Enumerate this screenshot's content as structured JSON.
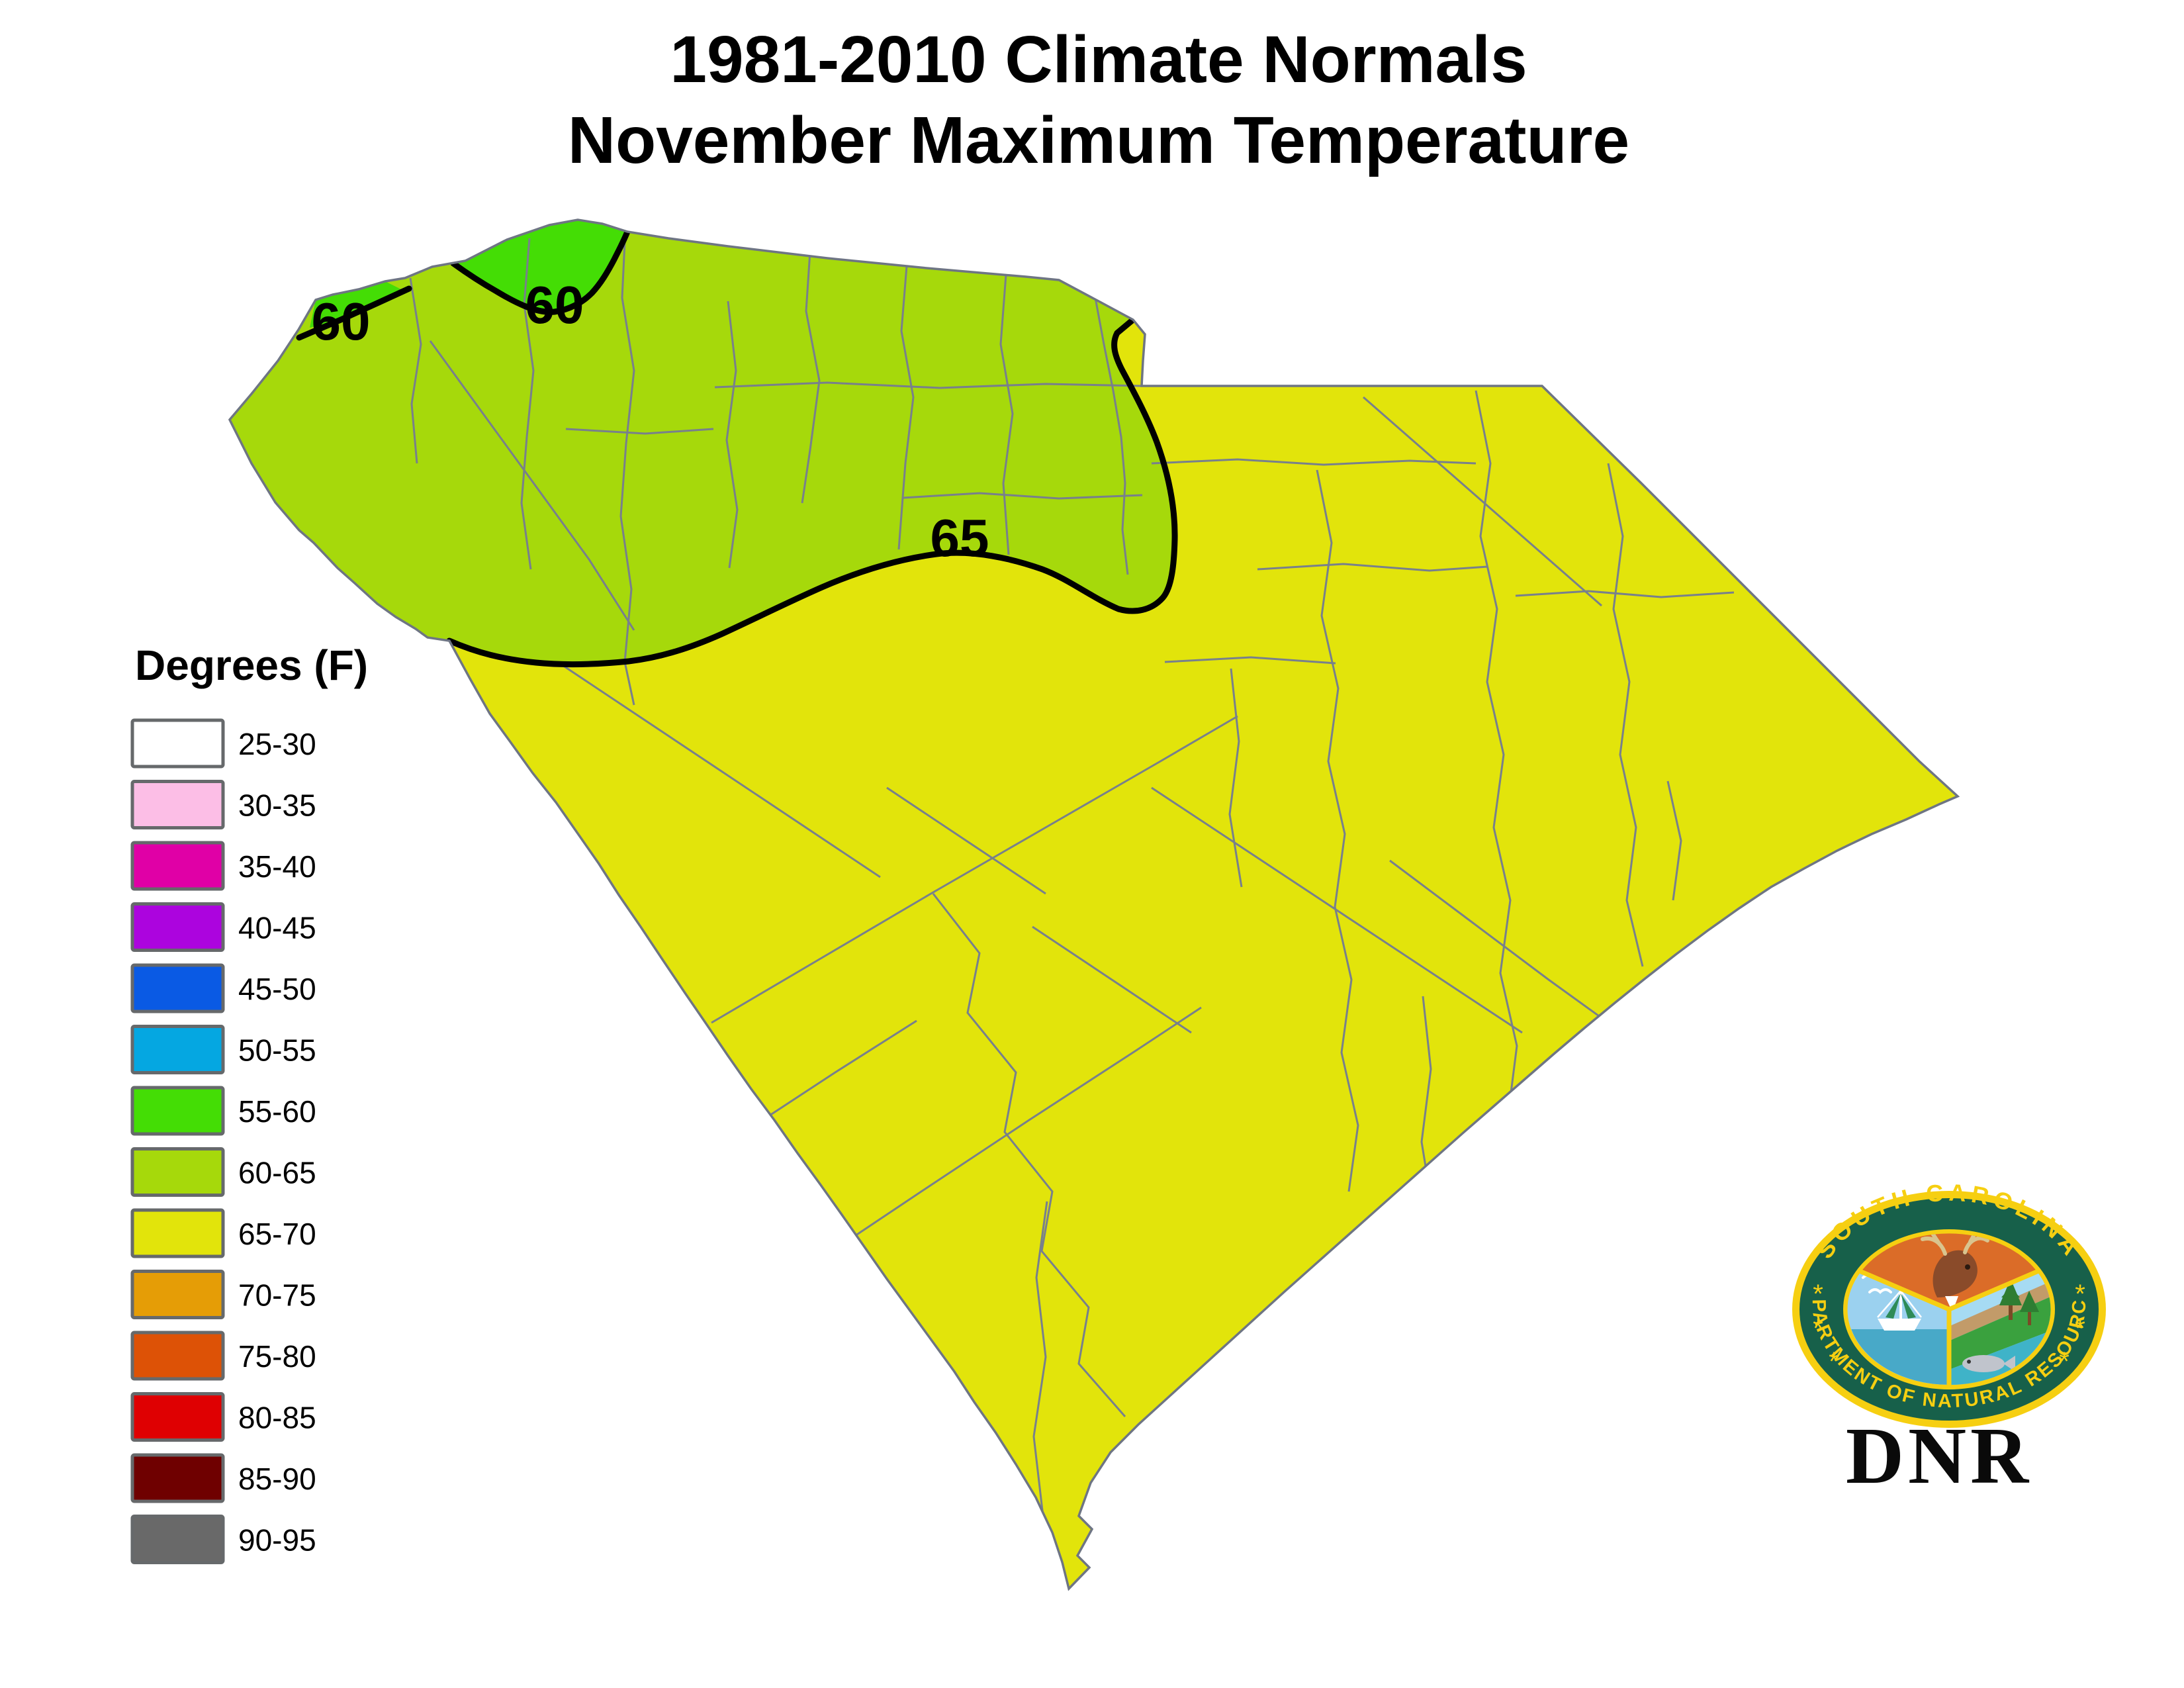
{
  "title": {
    "line1": "1981-2010 Climate Normals",
    "line2": "November Maximum Temperature"
  },
  "legend": {
    "heading": "Degrees (F)",
    "items": [
      {
        "label": "25-30",
        "color": "#FFFFFF"
      },
      {
        "label": "30-35",
        "color": "#FCBEE6"
      },
      {
        "label": "35-40",
        "color": "#E000A6"
      },
      {
        "label": "40-45",
        "color": "#AC04DE"
      },
      {
        "label": "45-50",
        "color": "#0A5AE4"
      },
      {
        "label": "50-55",
        "color": "#05A7E1"
      },
      {
        "label": "55-60",
        "color": "#44DD05"
      },
      {
        "label": "60-65",
        "color": "#A6D90B"
      },
      {
        "label": "65-70",
        "color": "#E2E40B"
      },
      {
        "label": "70-75",
        "color": "#E59D06"
      },
      {
        "label": "75-80",
        "color": "#DD5206"
      },
      {
        "label": "80-85",
        "color": "#DF0002"
      },
      {
        "label": "85-90",
        "color": "#6F0000"
      },
      {
        "label": "90-95",
        "color": "#696969"
      }
    ],
    "swatch_border": "#66696B"
  },
  "map": {
    "contour_labels": [
      {
        "text": "60"
      },
      {
        "text": "60"
      },
      {
        "text": "65"
      }
    ],
    "colors": {
      "area_55_60": "#44DD05",
      "area_60_65": "#A6D90B",
      "area_65_70": "#E2E40B",
      "county_line": "#78808C",
      "state_border": "#6E7583",
      "contour": "#000000"
    }
  },
  "logo": {
    "arc_top": "SOUTH CAROLINA",
    "arc_bottom": "DEPARTMENT OF NATURAL RESOURCES",
    "caption": "DNR",
    "star": "*",
    "colors": {
      "gold": "#F6CF11",
      "ring_green": "#17604A",
      "wedge_orange": "#DB6C28",
      "wedge_sky_left": "#9BD1EF",
      "wedge_sky_right": "#A6DBF3",
      "water_left": "#48A9C8",
      "water_right": "#3FB3C8",
      "beach_tan": "#C29B69",
      "grass_green": "#3AA13E",
      "tree_green": "#2E7D32",
      "deer_brown": "#8A4B2A",
      "antler_tan": "#D9C48E",
      "trunk_brown": "#7A4A26",
      "fish_gray": "#C0C4CC",
      "eagle_brown": "#7A4A20",
      "white": "#FFFFFF",
      "net_green": "#2E8B57"
    }
  }
}
